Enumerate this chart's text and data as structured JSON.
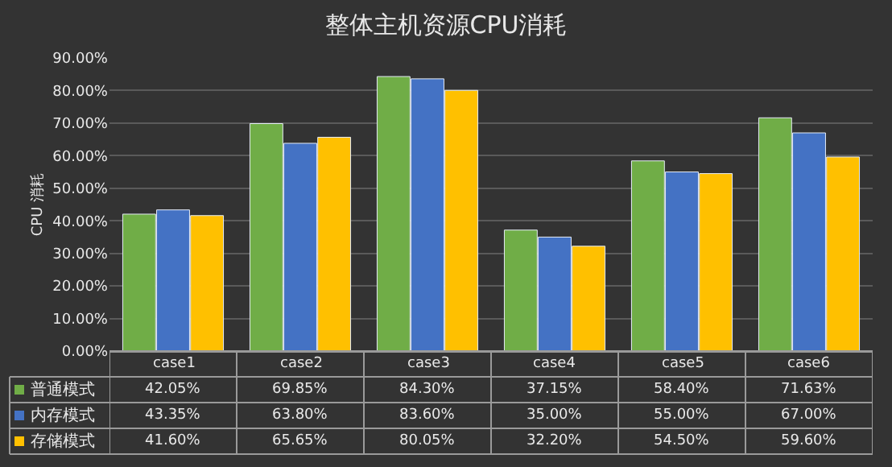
{
  "chart_data": {
    "type": "bar",
    "title": "整体主机资源CPU消耗",
    "ylabel": "CPU 消耗",
    "categories": [
      "case1",
      "case2",
      "case3",
      "case4",
      "case5",
      "case6"
    ],
    "series": [
      {
        "name": "普通模式",
        "color": "#70ad47",
        "values": [
          42.05,
          69.85,
          84.3,
          37.15,
          58.4,
          71.63
        ],
        "value_labels": [
          "42.05%",
          "69.85%",
          "84.30%",
          "37.15%",
          "58.40%",
          "71.63%"
        ]
      },
      {
        "name": "内存模式",
        "color": "#4472c4",
        "values": [
          43.35,
          63.8,
          83.6,
          35.0,
          55.0,
          67.0
        ],
        "value_labels": [
          "43.35%",
          "63.80%",
          "83.60%",
          "35.00%",
          "55.00%",
          "67.00%"
        ]
      },
      {
        "name": "存储模式",
        "color": "#ffc000",
        "values": [
          41.6,
          65.65,
          80.05,
          32.2,
          54.5,
          59.6
        ],
        "value_labels": [
          "41.60%",
          "65.65%",
          "80.05%",
          "32.20%",
          "54.50%",
          "59.60%"
        ]
      }
    ],
    "ylim": [
      0,
      90
    ],
    "yticks": [
      {
        "value": 0,
        "label": "0.00%"
      },
      {
        "value": 10,
        "label": "10.00%"
      },
      {
        "value": 20,
        "label": "20.00%"
      },
      {
        "value": 30,
        "label": "30.00%"
      },
      {
        "value": 40,
        "label": "40.00%"
      },
      {
        "value": 50,
        "label": "50.00%"
      },
      {
        "value": 60,
        "label": "60.00%"
      },
      {
        "value": 70,
        "label": "70.00%"
      },
      {
        "value": 80,
        "label": "80.00%"
      },
      {
        "value": 90,
        "label": "90.00%"
      }
    ],
    "grid": "y",
    "legend": "bottom left"
  }
}
